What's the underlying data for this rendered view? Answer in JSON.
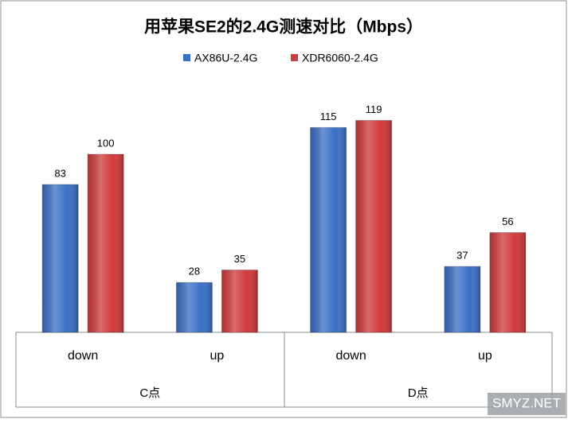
{
  "chart_data": {
    "type": "bar",
    "title": "用苹果SE2的2.4G测速对比（Mbps）",
    "categories": [
      "down",
      "up",
      "down",
      "up"
    ],
    "groups": [
      {
        "label": "C点",
        "span": 2
      },
      {
        "label": "D点",
        "span": 2
      }
    ],
    "series": [
      {
        "name": "AX86U-2.4G",
        "color": "#3a6fc4",
        "values": [
          83,
          28,
          115,
          37
        ]
      },
      {
        "name": "XDR6060-2.4G",
        "color": "#cf3a3a",
        "values": [
          100,
          35,
          119,
          56
        ]
      }
    ],
    "legend": "top"
  },
  "watermark": "SMYZ.NET"
}
